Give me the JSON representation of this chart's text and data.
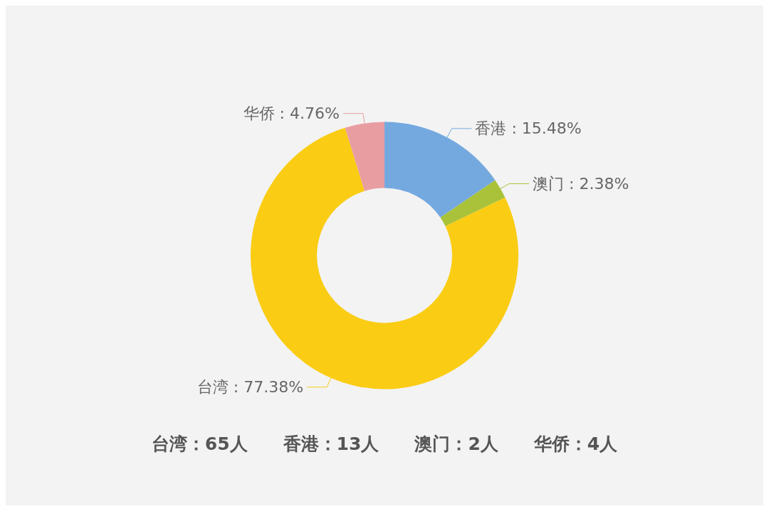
{
  "chart_data": {
    "type": "donut",
    "categories": [
      "香港",
      "澳门",
      "台湾",
      "华侨"
    ],
    "values": [
      15.48,
      2.38,
      77.38,
      4.76
    ],
    "value_labels": [
      "15.48%",
      "2.38%",
      "77.38%",
      "4.76%"
    ],
    "colors": [
      "#74a9e0",
      "#a9c23a",
      "#facc14",
      "#e89ea1"
    ],
    "legend": false,
    "annotations": [
      "台湾：65人　　香港：13人　　澳门：2人　　华侨：4人"
    ]
  }
}
